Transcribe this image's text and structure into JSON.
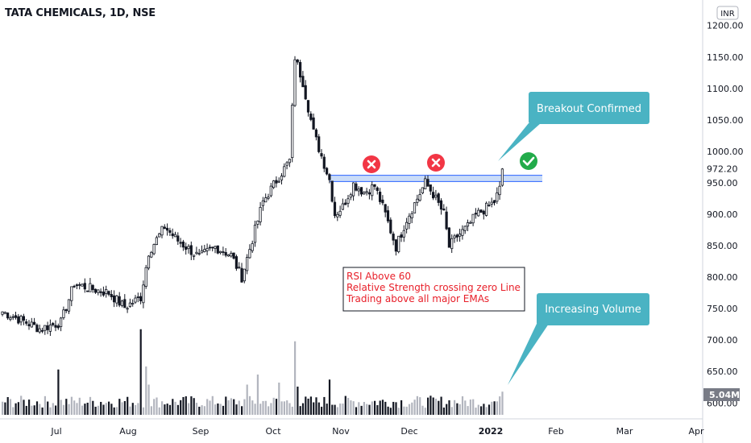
{
  "header": {
    "title": "TATA CHEMICALS, 1D, NSE"
  },
  "currency_badge": "INR",
  "chart_data": {
    "type": "candlestick",
    "title": "TATA CHEMICALS, 1D, NSE",
    "currency": "INR",
    "y_axis": {
      "ylim": [
        585,
        1215
      ],
      "ticks": [
        "600.00",
        "650.00",
        "700.00",
        "750.00",
        "800.00",
        "850.00",
        "900.00",
        "950.00",
        "1000.00",
        "1050.00",
        "1100.00",
        "1150.00",
        "1200.00"
      ]
    },
    "x_axis": {
      "ticks": [
        "Jul",
        "Aug",
        "Sep",
        "Oct",
        "Nov",
        "Dec",
        "2022",
        "Feb",
        "Mar",
        "Apr"
      ],
      "bold_ticks": [
        "2022"
      ]
    },
    "current_price_label": "972.20",
    "current_volume_label": "5.04M",
    "resistance_zone": [
      952,
      962
    ],
    "rejection_markers": 2,
    "confirmation_markers": 1,
    "annotations": {
      "breakout": "Breakout Confirmed",
      "volume": "Increasing Volume",
      "notes": [
        "RSI Above 60",
        "Relative Strength crossing zero Line",
        "Trading above all major EMAs"
      ]
    },
    "price_waypoints": [
      {
        "i": 0,
        "c": 745
      },
      {
        "i": 8,
        "c": 730
      },
      {
        "i": 14,
        "c": 718
      },
      {
        "i": 22,
        "c": 728
      },
      {
        "i": 27,
        "c": 790
      },
      {
        "i": 33,
        "c": 782
      },
      {
        "i": 40,
        "c": 775
      },
      {
        "i": 46,
        "c": 752
      },
      {
        "i": 52,
        "c": 768
      },
      {
        "i": 55,
        "c": 840
      },
      {
        "i": 61,
        "c": 880
      },
      {
        "i": 66,
        "c": 858
      },
      {
        "i": 74,
        "c": 832
      },
      {
        "i": 80,
        "c": 848
      },
      {
        "i": 86,
        "c": 835
      },
      {
        "i": 90,
        "c": 800
      },
      {
        "i": 94,
        "c": 860
      },
      {
        "i": 98,
        "c": 920
      },
      {
        "i": 104,
        "c": 960
      },
      {
        "i": 108,
        "c": 985
      },
      {
        "i": 110,
        "c": 1150
      },
      {
        "i": 113,
        "c": 1110
      },
      {
        "i": 117,
        "c": 1030
      },
      {
        "i": 121,
        "c": 980
      },
      {
        "i": 123,
        "c": 955
      },
      {
        "i": 125,
        "c": 900
      },
      {
        "i": 128,
        "c": 912
      },
      {
        "i": 132,
        "c": 948
      },
      {
        "i": 136,
        "c": 935
      },
      {
        "i": 140,
        "c": 945
      },
      {
        "i": 144,
        "c": 900
      },
      {
        "i": 148,
        "c": 848
      },
      {
        "i": 152,
        "c": 892
      },
      {
        "i": 156,
        "c": 925
      },
      {
        "i": 159,
        "c": 950
      },
      {
        "i": 162,
        "c": 932
      },
      {
        "i": 166,
        "c": 900
      },
      {
        "i": 168,
        "c": 848
      },
      {
        "i": 171,
        "c": 865
      },
      {
        "i": 175,
        "c": 880
      },
      {
        "i": 178,
        "c": 898
      },
      {
        "i": 182,
        "c": 910
      },
      {
        "i": 185,
        "c": 920
      },
      {
        "i": 187,
        "c": 940
      },
      {
        "i": 188,
        "c": 972
      }
    ],
    "volume_spikes": [
      {
        "i": 21,
        "v": 0.45
      },
      {
        "i": 52,
        "v": 0.85
      },
      {
        "i": 54,
        "v": 0.48
      },
      {
        "i": 55,
        "v": 0.3
      },
      {
        "i": 92,
        "v": 0.3
      },
      {
        "i": 96,
        "v": 0.4
      },
      {
        "i": 104,
        "v": 0.32
      },
      {
        "i": 110,
        "v": 0.73
      },
      {
        "i": 111,
        "v": 0.28
      },
      {
        "i": 123,
        "v": 0.35
      },
      {
        "i": 188,
        "v": 0.23
      }
    ]
  }
}
